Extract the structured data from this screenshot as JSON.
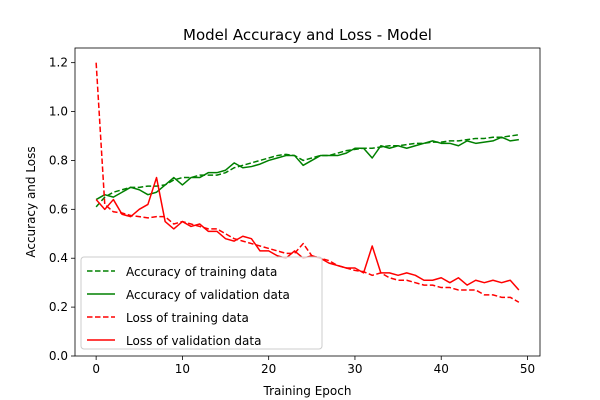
{
  "chart_data": {
    "type": "line",
    "title": "Model Accuracy and Loss - Model",
    "xlabel": "Training Epoch",
    "ylabel": "Accuracy and Loss",
    "xlim": [
      -2.45,
      51.45
    ],
    "ylim": [
      0.0,
      1.26
    ],
    "xticks": [
      0,
      10,
      20,
      30,
      40,
      50
    ],
    "yticks": [
      0.0,
      0.2,
      0.4,
      0.6,
      0.8,
      1.0,
      1.2
    ],
    "xtick_labels": [
      "0",
      "10",
      "20",
      "30",
      "40",
      "50"
    ],
    "ytick_labels": [
      "0.0",
      "0.2",
      "0.4",
      "0.6",
      "0.8",
      "1.0",
      "1.2"
    ],
    "grid": false,
    "legend_position": "lower-left",
    "x": [
      0,
      1,
      2,
      3,
      4,
      5,
      6,
      7,
      8,
      9,
      10,
      11,
      12,
      13,
      14,
      15,
      16,
      17,
      18,
      19,
      20,
      21,
      22,
      23,
      24,
      25,
      26,
      27,
      28,
      29,
      30,
      31,
      32,
      33,
      34,
      35,
      36,
      37,
      38,
      39,
      40,
      41,
      42,
      43,
      44,
      45,
      46,
      47,
      48,
      49
    ],
    "series": [
      {
        "name": "Accuracy of training data",
        "color": "#008000",
        "dash": "dashed",
        "values": [
          0.61,
          0.65,
          0.67,
          0.68,
          0.69,
          0.69,
          0.695,
          0.695,
          0.7,
          0.72,
          0.73,
          0.73,
          0.74,
          0.74,
          0.74,
          0.75,
          0.77,
          0.78,
          0.79,
          0.8,
          0.81,
          0.82,
          0.825,
          0.82,
          0.8,
          0.81,
          0.82,
          0.82,
          0.83,
          0.84,
          0.845,
          0.85,
          0.85,
          0.855,
          0.86,
          0.86,
          0.865,
          0.87,
          0.87,
          0.875,
          0.875,
          0.88,
          0.88,
          0.885,
          0.89,
          0.89,
          0.895,
          0.895,
          0.9,
          0.905
        ]
      },
      {
        "name": "Accuracy of validation data",
        "color": "#008000",
        "dash": "solid",
        "values": [
          0.64,
          0.66,
          0.65,
          0.67,
          0.69,
          0.68,
          0.66,
          0.67,
          0.7,
          0.73,
          0.7,
          0.73,
          0.73,
          0.75,
          0.75,
          0.76,
          0.79,
          0.77,
          0.775,
          0.785,
          0.8,
          0.81,
          0.82,
          0.82,
          0.78,
          0.8,
          0.82,
          0.82,
          0.82,
          0.83,
          0.85,
          0.85,
          0.81,
          0.86,
          0.85,
          0.86,
          0.85,
          0.86,
          0.87,
          0.88,
          0.87,
          0.87,
          0.86,
          0.88,
          0.87,
          0.875,
          0.88,
          0.895,
          0.88,
          0.885
        ]
      },
      {
        "name": "Loss of training data",
        "color": "#ff0000",
        "dash": "dashed",
        "values": [
          1.2,
          0.62,
          0.59,
          0.585,
          0.575,
          0.57,
          0.565,
          0.57,
          0.57,
          0.54,
          0.55,
          0.54,
          0.53,
          0.52,
          0.52,
          0.5,
          0.48,
          0.47,
          0.46,
          0.45,
          0.44,
          0.43,
          0.42,
          0.42,
          0.46,
          0.41,
          0.4,
          0.39,
          0.37,
          0.36,
          0.35,
          0.345,
          0.33,
          0.34,
          0.32,
          0.31,
          0.31,
          0.3,
          0.29,
          0.29,
          0.28,
          0.28,
          0.27,
          0.27,
          0.27,
          0.25,
          0.25,
          0.24,
          0.24,
          0.22
        ]
      },
      {
        "name": "Loss of validation data",
        "color": "#ff0000",
        "dash": "solid",
        "values": [
          0.64,
          0.6,
          0.64,
          0.58,
          0.57,
          0.6,
          0.62,
          0.73,
          0.55,
          0.52,
          0.55,
          0.53,
          0.54,
          0.51,
          0.51,
          0.48,
          0.47,
          0.49,
          0.48,
          0.43,
          0.43,
          0.41,
          0.4,
          0.43,
          0.4,
          0.41,
          0.4,
          0.38,
          0.37,
          0.36,
          0.36,
          0.34,
          0.45,
          0.34,
          0.34,
          0.33,
          0.34,
          0.33,
          0.31,
          0.31,
          0.32,
          0.3,
          0.32,
          0.29,
          0.31,
          0.3,
          0.31,
          0.3,
          0.31,
          0.27
        ]
      }
    ]
  }
}
